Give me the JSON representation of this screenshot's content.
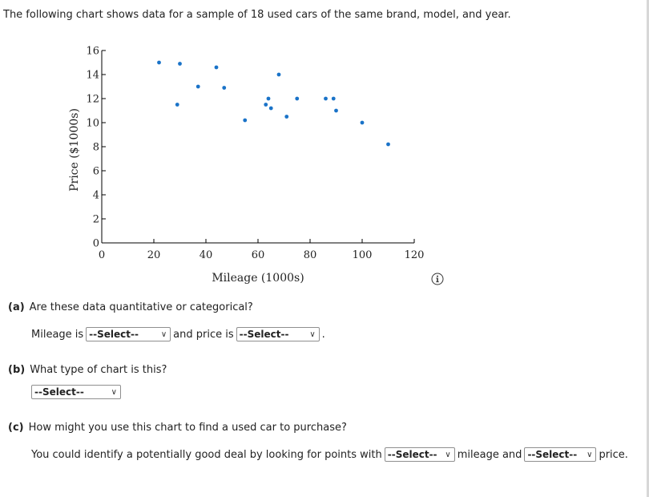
{
  "intro": "The following chart shows data for a sample of 18 used cars of the same brand, model, and year.",
  "chart_data": {
    "type": "scatter",
    "xlabel": "Mileage (1000s)",
    "ylabel": "Price ($1000s)",
    "xlim": [
      0,
      120
    ],
    "ylim": [
      0,
      16
    ],
    "xticks": [
      0,
      20,
      40,
      60,
      80,
      100,
      120
    ],
    "yticks": [
      0,
      2,
      4,
      6,
      8,
      10,
      12,
      14,
      16
    ],
    "marker_color": "#1a73c8",
    "points": [
      {
        "x": 22,
        "y": 15.0
      },
      {
        "x": 29,
        "y": 11.5
      },
      {
        "x": 30,
        "y": 14.9
      },
      {
        "x": 37,
        "y": 13.0
      },
      {
        "x": 44,
        "y": 14.6
      },
      {
        "x": 47,
        "y": 12.9
      },
      {
        "x": 55,
        "y": 10.2
      },
      {
        "x": 63,
        "y": 11.5
      },
      {
        "x": 64,
        "y": 12.0
      },
      {
        "x": 65,
        "y": 11.2
      },
      {
        "x": 68,
        "y": 14.0
      },
      {
        "x": 71,
        "y": 10.5
      },
      {
        "x": 75,
        "y": 12.0
      },
      {
        "x": 86,
        "y": 12.0
      },
      {
        "x": 89,
        "y": 12.0
      },
      {
        "x": 90,
        "y": 11.0
      },
      {
        "x": 100,
        "y": 10.0
      },
      {
        "x": 110,
        "y": 8.2
      }
    ]
  },
  "info_icon": "info-circle-icon",
  "part_a": {
    "letter": "(a)",
    "question": "Are these data quantitative or categorical?",
    "mileage_prefix": "Mileage is",
    "select1": "--Select--",
    "price_prefix": "and price is",
    "select2": "--Select--",
    "end": "."
  },
  "part_b": {
    "letter": "(b)",
    "question": "What type of chart is this?",
    "select": "--Select--"
  },
  "part_c": {
    "letter": "(c)",
    "question": "How might you use this chart to find a used car to purchase?",
    "sentence_start": "You could identify a potentially good deal by looking for points with",
    "select1": "--Select--",
    "middle": "mileage and",
    "select2": "--Select--",
    "end": "price."
  }
}
